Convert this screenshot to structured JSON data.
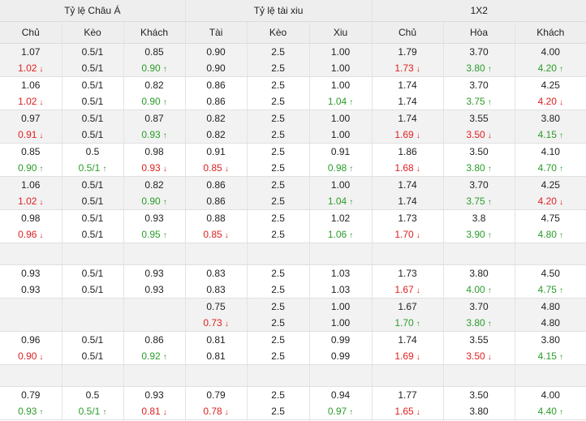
{
  "header": {
    "groups": [
      "Tỷ lệ Châu Á",
      "Tỷ lệ tài xiu",
      "1X2"
    ],
    "columns": [
      "Chủ",
      "Kèo",
      "Khách",
      "Tài",
      "Kèo",
      "Xiu",
      "Chủ",
      "Hòa",
      "Khách"
    ]
  },
  "colors": {
    "up": "#2a9c2a",
    "down": "#e02020",
    "header_bg": "#eeeeee",
    "alt_row_bg": "#f2f2f2"
  },
  "icons": {
    "up": "arrow-up-icon",
    "down": "arrow-down-icon"
  },
  "rows": [
    {
      "bg": "grey",
      "cells": [
        [
          "1.07",
          {
            "v": "1.02",
            "d": "down"
          }
        ],
        [
          "0.5/1",
          "0.5/1"
        ],
        [
          "0.85",
          {
            "v": "0.90",
            "d": "up"
          }
        ],
        [
          "0.90",
          "0.90"
        ],
        [
          "2.5",
          "2.5"
        ],
        [
          "1.00",
          "1.00"
        ],
        [
          "1.79",
          {
            "v": "1.73",
            "d": "down"
          }
        ],
        [
          "3.70",
          {
            "v": "3.80",
            "d": "up"
          }
        ],
        [
          "4.00",
          {
            "v": "4.20",
            "d": "up"
          }
        ]
      ]
    },
    {
      "bg": "white",
      "cells": [
        [
          "1.06",
          {
            "v": "1.02",
            "d": "down"
          }
        ],
        [
          "0.5/1",
          "0.5/1"
        ],
        [
          "0.82",
          {
            "v": "0.90",
            "d": "up"
          }
        ],
        [
          "0.86",
          "0.86"
        ],
        [
          "2.5",
          "2.5"
        ],
        [
          "1.00",
          {
            "v": "1.04",
            "d": "up"
          }
        ],
        [
          "1.74",
          "1.74"
        ],
        [
          "3.70",
          {
            "v": "3.75",
            "d": "up"
          }
        ],
        [
          "4.25",
          {
            "v": "4.20",
            "d": "down"
          }
        ]
      ]
    },
    {
      "bg": "grey",
      "cells": [
        [
          "0.97",
          {
            "v": "0.91",
            "d": "down"
          }
        ],
        [
          "0.5/1",
          "0.5/1"
        ],
        [
          "0.87",
          {
            "v": "0.93",
            "d": "up"
          }
        ],
        [
          "0.82",
          "0.82"
        ],
        [
          "2.5",
          "2.5"
        ],
        [
          "1.00",
          "1.00"
        ],
        [
          "1.74",
          {
            "v": "1.69",
            "d": "down"
          }
        ],
        [
          "3.55",
          {
            "v": "3.50",
            "d": "down"
          }
        ],
        [
          "3.80",
          {
            "v": "4.15",
            "d": "up"
          }
        ]
      ]
    },
    {
      "bg": "white",
      "cells": [
        [
          "0.85",
          {
            "v": "0.90",
            "d": "up"
          }
        ],
        [
          "0.5",
          {
            "v": "0.5/1",
            "d": "up"
          }
        ],
        [
          "0.98",
          {
            "v": "0.93",
            "d": "down"
          }
        ],
        [
          "0.91",
          {
            "v": "0.85",
            "d": "down"
          }
        ],
        [
          "2.5",
          "2.5"
        ],
        [
          "0.91",
          {
            "v": "0.98",
            "d": "up"
          }
        ],
        [
          "1.86",
          {
            "v": "1.68",
            "d": "down"
          }
        ],
        [
          "3.50",
          {
            "v": "3.80",
            "d": "up"
          }
        ],
        [
          "4.10",
          {
            "v": "4.70",
            "d": "up"
          }
        ]
      ]
    },
    {
      "bg": "grey",
      "cells": [
        [
          "1.06",
          {
            "v": "1.02",
            "d": "down"
          }
        ],
        [
          "0.5/1",
          "0.5/1"
        ],
        [
          "0.82",
          {
            "v": "0.90",
            "d": "up"
          }
        ],
        [
          "0.86",
          "0.86"
        ],
        [
          "2.5",
          "2.5"
        ],
        [
          "1.00",
          {
            "v": "1.04",
            "d": "up"
          }
        ],
        [
          "1.74",
          "1.74"
        ],
        [
          "3.70",
          {
            "v": "3.75",
            "d": "up"
          }
        ],
        [
          "4.25",
          {
            "v": "4.20",
            "d": "down"
          }
        ]
      ]
    },
    {
      "bg": "white",
      "cells": [
        [
          "0.98",
          {
            "v": "0.96",
            "d": "down"
          }
        ],
        [
          "0.5/1",
          "0.5/1"
        ],
        [
          "0.93",
          {
            "v": "0.95",
            "d": "up"
          }
        ],
        [
          "0.88",
          {
            "v": "0.85",
            "d": "down"
          }
        ],
        [
          "2.5",
          "2.5"
        ],
        [
          "1.02",
          {
            "v": "1.06",
            "d": "up"
          }
        ],
        [
          "1.73",
          {
            "v": "1.70",
            "d": "down"
          }
        ],
        [
          "3.8",
          {
            "v": "3.90",
            "d": "up"
          }
        ],
        [
          "4.75",
          {
            "v": "4.80",
            "d": "up"
          }
        ]
      ]
    },
    {
      "bg": "grey",
      "empty": true,
      "cells": []
    },
    {
      "bg": "white",
      "cells": [
        [
          "0.93",
          "0.93"
        ],
        [
          "0.5/1",
          "0.5/1"
        ],
        [
          "0.93",
          "0.93"
        ],
        [
          "0.83",
          "0.83"
        ],
        [
          "2.5",
          "2.5"
        ],
        [
          "1.03",
          "1.03"
        ],
        [
          "1.73",
          {
            "v": "1.67",
            "d": "down"
          }
        ],
        [
          "3.80",
          {
            "v": "4.00",
            "d": "up"
          }
        ],
        [
          "4.50",
          {
            "v": "4.75",
            "d": "up"
          }
        ]
      ]
    },
    {
      "bg": "grey",
      "cells": [
        [],
        [],
        [],
        [
          "0.75",
          {
            "v": "0.73",
            "d": "down"
          }
        ],
        [
          "2.5",
          "2.5"
        ],
        [
          "1.00",
          "1.00"
        ],
        [
          "1.67",
          {
            "v": "1.70",
            "d": "up"
          }
        ],
        [
          "3.70",
          {
            "v": "3.80",
            "d": "up"
          }
        ],
        [
          "4.80",
          "4.80"
        ]
      ]
    },
    {
      "bg": "white",
      "cells": [
        [
          "0.96",
          {
            "v": "0.90",
            "d": "down"
          }
        ],
        [
          "0.5/1",
          "0.5/1"
        ],
        [
          "0.86",
          {
            "v": "0.92",
            "d": "up"
          }
        ],
        [
          "0.81",
          "0.81"
        ],
        [
          "2.5",
          "2.5"
        ],
        [
          "0.99",
          "0.99"
        ],
        [
          "1.74",
          {
            "v": "1.69",
            "d": "down"
          }
        ],
        [
          "3.55",
          {
            "v": "3.50",
            "d": "down"
          }
        ],
        [
          "3.80",
          {
            "v": "4.15",
            "d": "up"
          }
        ]
      ]
    },
    {
      "bg": "grey",
      "empty": true,
      "cells": []
    },
    {
      "bg": "white",
      "cells": [
        [
          "0.79",
          {
            "v": "0.93",
            "d": "up"
          }
        ],
        [
          "0.5",
          {
            "v": "0.5/1",
            "d": "up"
          }
        ],
        [
          "0.93",
          {
            "v": "0.81",
            "d": "down"
          }
        ],
        [
          "0.79",
          {
            "v": "0.78",
            "d": "down"
          }
        ],
        [
          "2.5",
          "2.5"
        ],
        [
          "0.94",
          {
            "v": "0.97",
            "d": "up"
          }
        ],
        [
          "1.77",
          {
            "v": "1.65",
            "d": "down"
          }
        ],
        [
          "3.50",
          "3.80"
        ],
        [
          "4.00",
          {
            "v": "4.40",
            "d": "up"
          }
        ]
      ]
    }
  ]
}
